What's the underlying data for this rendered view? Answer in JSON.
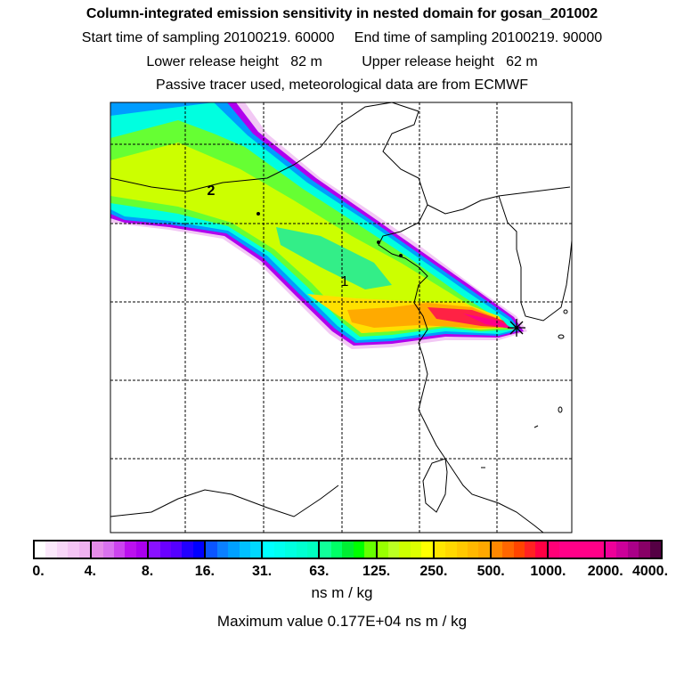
{
  "header": {
    "title": "Column-integrated emission sensitivity in nested domain for gosan_201002",
    "sampling": "Start time of sampling 20100219. 60000     End time of sampling 20100219. 90000",
    "release": "Lower release height   82 m          Upper release height   62 m",
    "info": "Passive tracer used, meteorological data are from ECMWF"
  },
  "map": {
    "labels": [
      "1",
      "2"
    ],
    "receptor_icon": "star-icon"
  },
  "colorbar": {
    "ticks": [
      "0.",
      "4.",
      "8.",
      "16.",
      "31.",
      "63.",
      "125.",
      "250.",
      "500.",
      "1000.",
      "2000.",
      "4000."
    ],
    "segments": [
      [
        "#ffffff",
        "#fbe8fb",
        "#f8d6f8",
        "#f4c4f4",
        "#efb2f0"
      ],
      [
        "#e58ce8",
        "#d972ee",
        "#cc44ee",
        "#bb11ee",
        "#aa00ee"
      ],
      [
        "#8a11ff",
        "#6a00ff",
        "#5500ff",
        "#2200ff",
        "#0000ff"
      ],
      [
        "#0b55ff",
        "#0b80ff",
        "#00a0ff",
        "#00c0ff",
        "#00d8ff"
      ],
      [
        "#00ffff",
        "#00fff0",
        "#00ffe0",
        "#00ffd0",
        "#00ffc0"
      ],
      [
        "#11ff99",
        "#00ff66",
        "#00ee33",
        "#00ff00",
        "#66ff00"
      ],
      [
        "#99ff00",
        "#bbff22",
        "#ccff00",
        "#ddff00",
        "#ffff00"
      ],
      [
        "#ffe600",
        "#ffd800",
        "#ffc800",
        "#ffb800",
        "#ffa800"
      ],
      [
        "#ff8800",
        "#ff6600",
        "#ff4400",
        "#ff2222",
        "#ff0044"
      ],
      [
        "#ff0077",
        "#ff0088",
        "#ff0088",
        "#ff0088",
        "#ff0088"
      ],
      [
        "#ee0099",
        "#cc0099",
        "#aa0088",
        "#880066",
        "#550044"
      ]
    ],
    "unit": "ns m / kg",
    "max_label": "Maximum value  0.177E+04 ns m / kg"
  }
}
